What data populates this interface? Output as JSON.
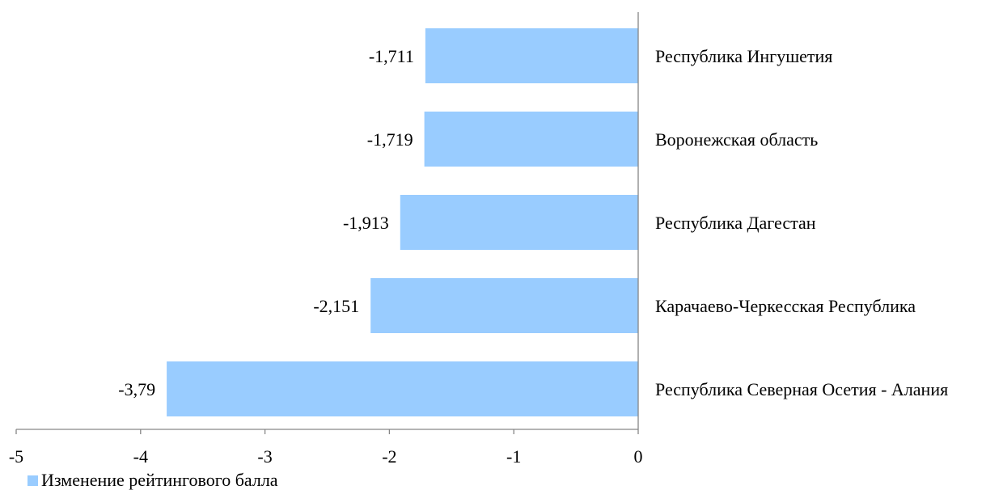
{
  "chart_data": {
    "type": "bar",
    "orientation": "horizontal",
    "categories": [
      "Республика Ингушетия",
      "Воронежская область",
      "Республика Дагестан",
      "Карачаево-Черкесская Республика",
      "Республика Северная Осетия - Алания"
    ],
    "series": [
      {
        "name": "Изменение рейтингового балла",
        "values": [
          -1.711,
          -1.719,
          -1.913,
          -2.151,
          -3.79
        ],
        "data_labels": [
          "-1,711",
          "-1,719",
          "-1,913",
          "-2,151",
          "-3,79"
        ],
        "color": "#99CCFF"
      }
    ],
    "xlim": [
      -5,
      0
    ],
    "x_ticks": [
      -5,
      -4,
      -3,
      -2,
      -1,
      0
    ],
    "x_tick_labels": [
      "-5",
      "-4",
      "-3",
      "-2",
      "-1",
      "0"
    ],
    "grid": false,
    "legend_position": "bottom-left"
  },
  "legend": {
    "label": "Изменение рейтингового балла",
    "color": "#99CCFF"
  }
}
